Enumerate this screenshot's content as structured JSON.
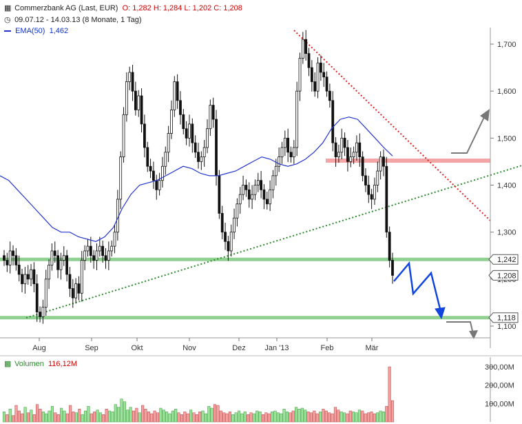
{
  "header": {
    "instrument": "Commerzbank AG (Last, EUR)",
    "ohlc": "O: 1,282  H: 1,284  L: 1,202  C: 1,208",
    "period": "09.07.12 - 14.03.13 (8 Monate, 1 Tag)",
    "ema_label": "EMA(50)",
    "ema_value": "1,462"
  },
  "volume_header": {
    "label": "Volumen",
    "value": "116,12M"
  },
  "colors": {
    "ema": "#2233cc",
    "support": "#90d090",
    "resistance": "#f4a6a6",
    "uptrend": "#2a8a2a",
    "downtrend": "#dd2222",
    "arrow_blue": "#1144dd",
    "arrow_gray": "#777777",
    "vol_up": "#9be39b",
    "vol_down": "#f2a0a0"
  },
  "chart_data": [
    {
      "type": "candlestick",
      "x_axis_labels": [
        "Aug",
        "Sep",
        "Okt",
        "Nov",
        "Dez",
        "Jan '13",
        "Feb",
        "Mär"
      ],
      "y_axis_ticks": [
        "1,100",
        "1,200",
        "1,300",
        "1,400",
        "1,500",
        "1,600",
        "1,700"
      ],
      "y_tick_values": [
        1.1,
        1.2,
        1.3,
        1.4,
        1.5,
        1.6,
        1.7
      ],
      "ylim": [
        1.04,
        1.76
      ],
      "price_labels": [
        "1,242",
        "1,208",
        "1,118"
      ],
      "price_label_values": [
        1.242,
        1.208,
        1.118
      ],
      "closes": [
        1.24,
        1.23,
        1.26,
        1.25,
        1.23,
        1.21,
        1.19,
        1.21,
        1.2,
        1.22,
        1.19,
        1.13,
        1.12,
        1.14,
        1.2,
        1.23,
        1.26,
        1.25,
        1.22,
        1.24,
        1.25,
        1.21,
        1.18,
        1.16,
        1.19,
        1.17,
        1.24,
        1.26,
        1.27,
        1.25,
        1.24,
        1.26,
        1.27,
        1.25,
        1.24,
        1.26,
        1.27,
        1.3,
        1.37,
        1.46,
        1.55,
        1.62,
        1.64,
        1.6,
        1.56,
        1.59,
        1.53,
        1.48,
        1.44,
        1.43,
        1.41,
        1.39,
        1.41,
        1.44,
        1.47,
        1.51,
        1.56,
        1.62,
        1.58,
        1.55,
        1.52,
        1.5,
        1.53,
        1.49,
        1.47,
        1.45,
        1.46,
        1.48,
        1.52,
        1.57,
        1.54,
        1.42,
        1.34,
        1.3,
        1.28,
        1.26,
        1.3,
        1.33,
        1.36,
        1.38,
        1.4,
        1.39,
        1.37,
        1.38,
        1.4,
        1.41,
        1.39,
        1.37,
        1.36,
        1.39,
        1.42,
        1.44,
        1.46,
        1.48,
        1.5,
        1.47,
        1.46,
        1.48,
        1.6,
        1.67,
        1.71,
        1.68,
        1.65,
        1.62,
        1.6,
        1.66,
        1.64,
        1.63,
        1.6,
        1.58,
        1.49,
        1.46,
        1.47,
        1.5,
        1.48,
        1.45,
        1.46,
        1.47,
        1.49,
        1.46,
        1.42,
        1.4,
        1.38,
        1.37,
        1.4,
        1.43,
        1.46,
        1.44,
        1.3,
        1.24,
        1.208
      ],
      "ema50": [
        1.42,
        1.41,
        1.39,
        1.37,
        1.35,
        1.33,
        1.31,
        1.3,
        1.3,
        1.29,
        1.285,
        1.28,
        1.29,
        1.31,
        1.35,
        1.38,
        1.4,
        1.405,
        1.41,
        1.42,
        1.43,
        1.44,
        1.435,
        1.425,
        1.42,
        1.42,
        1.425,
        1.43,
        1.44,
        1.45,
        1.46,
        1.455,
        1.445,
        1.44,
        1.445,
        1.455,
        1.47,
        1.49,
        1.52,
        1.54,
        1.545,
        1.54,
        1.52,
        1.5,
        1.48,
        1.462
      ],
      "series": [
        {
          "name": "EMA(50)",
          "last": 1.462
        }
      ],
      "support_levels": [
        1.242,
        1.118
      ],
      "resistance_level": 1.452
    },
    {
      "type": "bar",
      "y_axis_ticks": [
        "100,00M",
        "200,00M",
        "300,00M"
      ],
      "y_tick_values": [
        100,
        200,
        300
      ],
      "ylim": [
        0,
        330
      ],
      "values": [
        55,
        40,
        70,
        35,
        90,
        60,
        45,
        80,
        50,
        65,
        40,
        95,
        70,
        55,
        45,
        60,
        85,
        50,
        40,
        75,
        60,
        45,
        90,
        55,
        50,
        70,
        40,
        60,
        85,
        45,
        55,
        65,
        50,
        40,
        70,
        60,
        55,
        95,
        80,
        125,
        110,
        65,
        80,
        60,
        75,
        50,
        90,
        70,
        55,
        45,
        60,
        50,
        75,
        65,
        55,
        45,
        60,
        70,
        50,
        40,
        55,
        45,
        65,
        50,
        40,
        55,
        60,
        45,
        85,
        75,
        95,
        90,
        60,
        50,
        45,
        55,
        40,
        50,
        60,
        45,
        55,
        40,
        50,
        45,
        60,
        55,
        40,
        50,
        45,
        55,
        60,
        50,
        45,
        70,
        55,
        50,
        60,
        80,
        70,
        75,
        65,
        55,
        50,
        60,
        45,
        55,
        70,
        60,
        50,
        45,
        80,
        65,
        55,
        50,
        45,
        60,
        55,
        50,
        65,
        60,
        45,
        50,
        55,
        45,
        50,
        60,
        55,
        85,
        300,
        116.12
      ]
    }
  ]
}
